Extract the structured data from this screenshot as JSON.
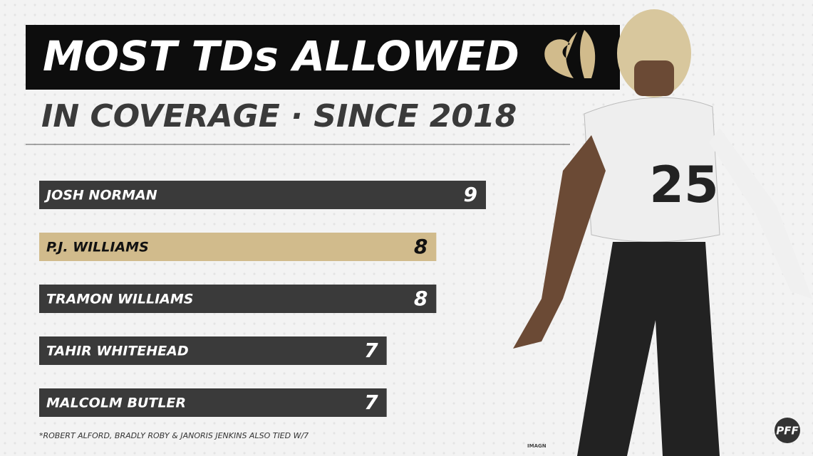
{
  "chart_data": {
    "type": "hbar",
    "title": "MOST TDs ALLOWED",
    "subtitle": "IN COVERAGE · SINCE 2018",
    "categories": [
      "JOSH NORMAN",
      "P.J. WILLIAMS",
      "TRAMON WILLIAMS",
      "TAHIR WHITEHEAD",
      "MALCOLM BUTLER"
    ],
    "values": [
      9,
      8,
      8,
      7,
      7
    ],
    "colors": [
      "#3a3a3a",
      "#d1bb8c",
      "#3a3a3a",
      "#3a3a3a",
      "#3a3a3a"
    ],
    "xlim": [
      0,
      9
    ],
    "footnote": "*ROBERT ALFORD, BRADLY ROBY & JANORIS JENKINS ALSO TIED W/7",
    "credit": "IMAGN",
    "logo": "PFF"
  }
}
